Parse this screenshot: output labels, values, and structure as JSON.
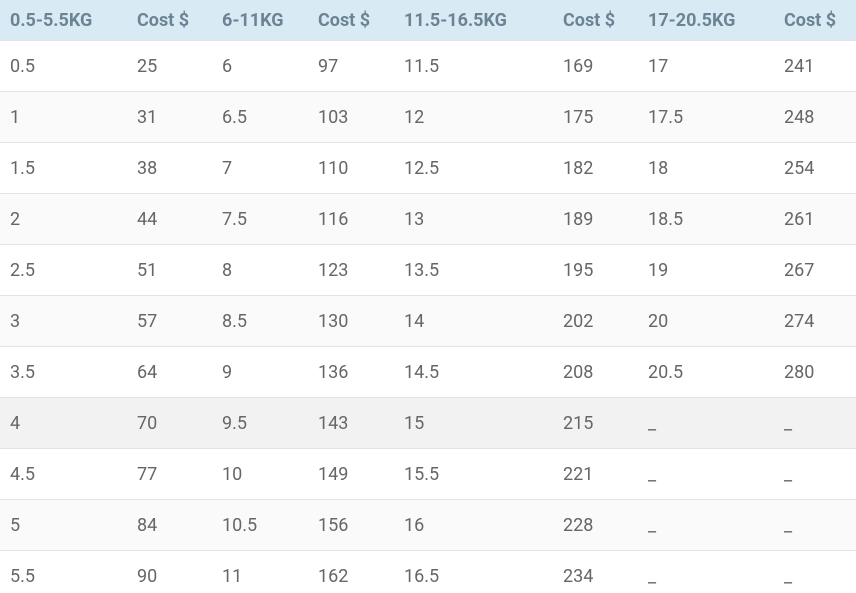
{
  "table": {
    "header": [
      "0.5-5.5KG",
      "Cost $",
      "6-11KG",
      "Cost $",
      "11.5-16.5KG",
      "Cost $",
      "17-20.5KG",
      "Cost $"
    ],
    "rows": [
      [
        "0.5",
        "25",
        "6",
        "97",
        "11.5",
        "169",
        "17",
        "241"
      ],
      [
        "1",
        "31",
        "6.5",
        "103",
        "12",
        "175",
        "17.5",
        "248"
      ],
      [
        "1.5",
        "38",
        "7",
        "110",
        "12.5",
        "182",
        "18",
        "254"
      ],
      [
        "2",
        "44",
        "7.5",
        "116",
        "13",
        "189",
        "18.5",
        "261"
      ],
      [
        "2.5",
        "51",
        "8",
        "123",
        "13.5",
        "195",
        "19",
        "267"
      ],
      [
        "3",
        "57",
        "8.5",
        "130",
        "14",
        "202",
        "20",
        "274"
      ],
      [
        "3.5",
        "64",
        "9",
        "136",
        "14.5",
        "208",
        "20.5",
        "280"
      ],
      [
        "4",
        "70",
        "9.5",
        "143",
        "15",
        "215",
        "_",
        "_"
      ],
      [
        "4.5",
        "77",
        "10",
        "149",
        "15.5",
        "221",
        "_",
        "_"
      ],
      [
        "5",
        "84",
        "10.5",
        "156",
        "16",
        "228",
        "_",
        "_"
      ],
      [
        "5.5",
        "90",
        "11",
        "162",
        "16.5",
        "234",
        "_",
        "_"
      ]
    ]
  }
}
